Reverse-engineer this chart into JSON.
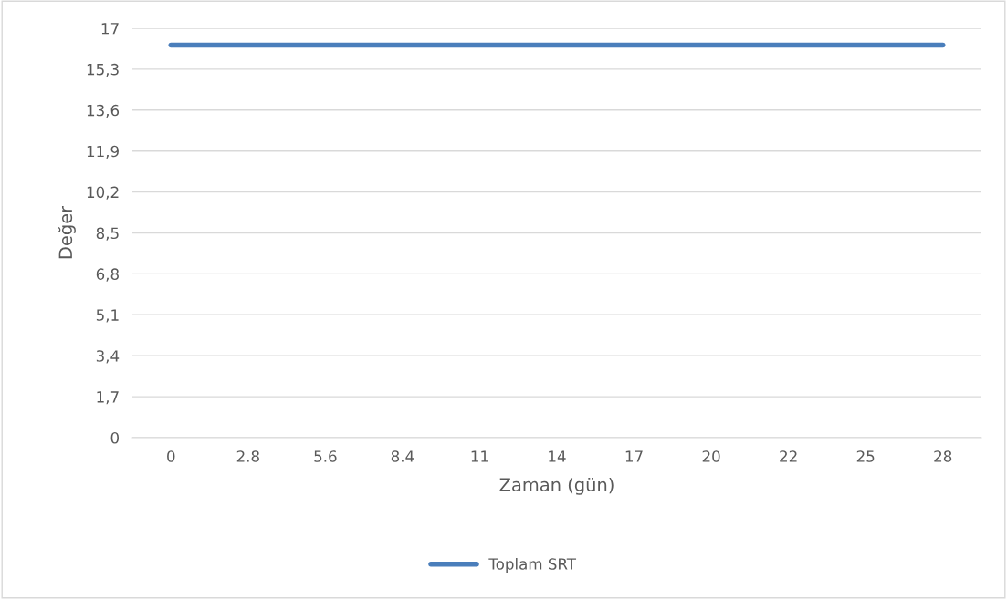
{
  "chart_data": {
    "type": "line",
    "xlabel": "Zaman (gün)",
    "ylabel": "Değer",
    "categories": [
      "0",
      "2.8",
      "5.6",
      "8.4",
      "11",
      "14",
      "17",
      "20",
      "22",
      "25",
      "28"
    ],
    "series": [
      {
        "name": "Toplam SRT",
        "color": "#4a7ebb",
        "values": [
          16.3,
          16.3,
          16.3,
          16.3,
          16.3,
          16.3,
          16.3,
          16.3,
          16.3,
          16.3,
          16.3
        ]
      }
    ],
    "ylim": [
      0,
      17
    ],
    "yticks": [
      0,
      {
        "value": 1.7,
        "label": "1,7"
      },
      {
        "value": 3.4,
        "label": "3,4"
      },
      {
        "value": 5.1,
        "label": "5,1"
      },
      {
        "value": 6.8,
        "label": "6,8"
      },
      {
        "value": 8.5,
        "label": "8,5"
      },
      {
        "value": 10.2,
        "label": "10,2"
      },
      {
        "value": 11.9,
        "label": "11,9"
      },
      {
        "value": 13.6,
        "label": "13,6"
      },
      {
        "value": 15.3,
        "label": "15,3"
      },
      17
    ],
    "grid": "y",
    "legend": "bottom",
    "marker": "none",
    "line_style": "solid"
  }
}
